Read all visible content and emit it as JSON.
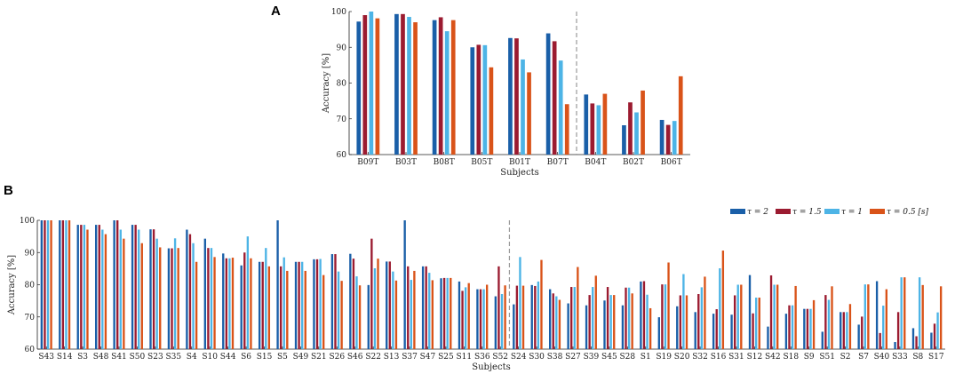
{
  "chart_data": [
    {
      "panel": "A",
      "type": "bar",
      "xlabel": "Subjects",
      "ylabel": "Accuracy [%]",
      "ylim": [
        60,
        100
      ],
      "yticks": [
        60,
        70,
        80,
        90,
        100
      ],
      "categories": [
        "B09T",
        "B03T",
        "B08T",
        "B05T",
        "B01T",
        "B07T",
        "B04T",
        "B02T",
        "B06T"
      ],
      "divider_after_index": 5,
      "series": [
        {
          "name": "τ = 2",
          "color": "#1a5fa8",
          "values": [
            97.2,
            99.3,
            97.6,
            90.0,
            92.6,
            93.9,
            76.8,
            68.2,
            69.7
          ]
        },
        {
          "name": "τ = 1.5",
          "color": "#9b1b30",
          "values": [
            99.0,
            99.3,
            98.4,
            90.7,
            92.5,
            91.7,
            74.3,
            74.6,
            68.3
          ]
        },
        {
          "name": "τ = 1",
          "color": "#4db4e6",
          "values": [
            100.0,
            98.5,
            94.5,
            90.6,
            86.6,
            86.3,
            73.8,
            71.8,
            69.4
          ]
        },
        {
          "name": "τ = 0.5 [s]",
          "color": "#d95319",
          "values": [
            98.1,
            97.0,
            97.6,
            84.4,
            83.0,
            74.1,
            77.0,
            77.9,
            81.9
          ]
        }
      ]
    },
    {
      "panel": "B",
      "type": "bar",
      "xlabel": "Subjects",
      "ylabel": "Accuracy [%]",
      "ylim": [
        60,
        100
      ],
      "yticks": [
        60,
        70,
        80,
        90,
        100
      ],
      "legend_position": "top-right",
      "divider_after_index": 25,
      "categories": [
        "S43",
        "S14",
        "S3",
        "S48",
        "S41",
        "S50",
        "S23",
        "S35",
        "S4",
        "S10",
        "S44",
        "S6",
        "S15",
        "S5",
        "S49",
        "S21",
        "S26",
        "S46",
        "S22",
        "S13",
        "S37",
        "S47",
        "S25",
        "S11",
        "S36",
        "S52",
        "S24",
        "S30",
        "S38",
        "S27",
        "S39",
        "S45",
        "S28",
        "S1",
        "S19",
        "S20",
        "S32",
        "S16",
        "S31",
        "S12",
        "S42",
        "S18",
        "S9",
        "S51",
        "S2",
        "S7",
        "S40",
        "S33",
        "S8",
        "S17"
      ],
      "series": [
        {
          "name": "τ = 2",
          "color": "#1a5fa8",
          "values": [
            100,
            100,
            98.6,
            98.6,
            100,
            98.6,
            97.2,
            91.3,
            97.1,
            94.3,
            89.7,
            86.0,
            87.1,
            100,
            87.1,
            87.9,
            89.5,
            89.6,
            79.9,
            87.2,
            100,
            85.7,
            82.0,
            81.0,
            78.6,
            76.4,
            73.9,
            79.9,
            78.6,
            74.2,
            73.6,
            75.1,
            73.6,
            81.0,
            69.9,
            73.3,
            71.5,
            71.0,
            70.7,
            83.0,
            67.0,
            71.0,
            72.5,
            65.4,
            71.5,
            67.6,
            81.1,
            62.2,
            66.5,
            65.1
          ]
        },
        {
          "name": "τ = 1.5",
          "color": "#9b1b30",
          "values": [
            100,
            100,
            98.6,
            98.6,
            100,
            98.6,
            97.2,
            91.3,
            95.7,
            91.4,
            88.2,
            90.0,
            87.1,
            85.7,
            87.1,
            87.9,
            89.5,
            88.1,
            94.3,
            87.2,
            85.7,
            85.7,
            82.1,
            78.1,
            78.6,
            85.7,
            79.7,
            79.6,
            77.3,
            79.3,
            76.8,
            79.3,
            79.1,
            81.1,
            80.1,
            76.7,
            77.1,
            72.4,
            76.7,
            71.1,
            82.9,
            73.6,
            72.5,
            76.8,
            71.5,
            70.1,
            65.0,
            71.5,
            64.0,
            67.9
          ]
        },
        {
          "name": "τ = 1",
          "color": "#4db4e6",
          "values": [
            100,
            100,
            98.6,
            97.1,
            97.1,
            97.1,
            94.3,
            94.4,
            92.9,
            91.4,
            88.2,
            95.0,
            91.4,
            88.5,
            87.1,
            88.0,
            84.1,
            82.6,
            85.1,
            84.1,
            81.5,
            83.7,
            82.1,
            79.2,
            78.6,
            77.1,
            88.6,
            81.0,
            76.4,
            79.3,
            79.3,
            76.8,
            79.1,
            76.9,
            80.1,
            83.3,
            79.2,
            85.1,
            80.0,
            76.0,
            80.0,
            73.6,
            72.5,
            75.3,
            71.5,
            80.1,
            73.5,
            82.3,
            82.3,
            71.4
          ]
        },
        {
          "name": "τ = 0.5 [s]",
          "color": "#d95319",
          "values": [
            100,
            100,
            97.1,
            95.7,
            94.3,
            92.9,
            91.6,
            91.4,
            87.1,
            88.6,
            88.4,
            88.2,
            85.7,
            84.3,
            84.3,
            83.0,
            81.2,
            79.8,
            88.1,
            81.3,
            84.3,
            81.4,
            82.1,
            80.5,
            80.0,
            79.8,
            79.7,
            87.7,
            75.3,
            85.5,
            82.8,
            76.8,
            77.3,
            72.7,
            86.9,
            76.7,
            82.5,
            90.6,
            80.0,
            76.0,
            80.0,
            79.6,
            75.2,
            79.5,
            74.0,
            80.1,
            78.6,
            82.3,
            79.9,
            79.5
          ]
        }
      ]
    }
  ]
}
